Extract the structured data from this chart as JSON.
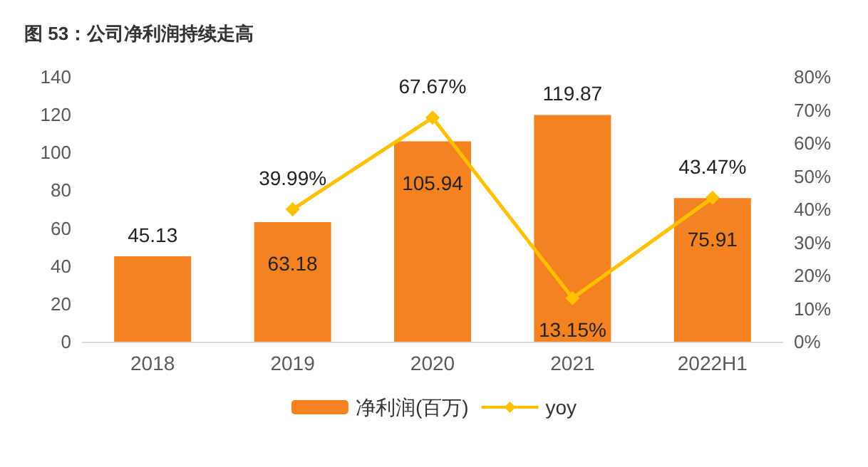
{
  "chart_data": {
    "type": "bar",
    "title": "图 53：公司净利润持续走高",
    "categories": [
      "2018",
      "2019",
      "2020",
      "2021",
      "2022H1"
    ],
    "series": [
      {
        "name": "净利润(百万)",
        "color": "#f58220",
        "values": [
          45.13,
          63.18,
          105.94,
          119.87,
          75.91
        ]
      },
      {
        "name": "yoy",
        "type": "line",
        "axis": "y2",
        "color": "#ffc000",
        "marker": "diamond",
        "values": [
          null,
          39.99,
          67.67,
          13.15,
          43.47
        ],
        "value_labels": [
          null,
          "39.99%",
          "67.67%",
          "13.15%",
          "43.47%"
        ]
      }
    ],
    "data_labels": true,
    "ylim": [
      0,
      140
    ],
    "yticks": [
      0,
      20,
      40,
      60,
      80,
      100,
      120,
      140
    ],
    "y2lim": [
      0,
      80
    ],
    "y2ticks": [
      {
        "value": 0,
        "label": "0%"
      },
      {
        "value": 10,
        "label": "10%"
      },
      {
        "value": 20,
        "label": "20%"
      },
      {
        "value": 30,
        "label": "30%"
      },
      {
        "value": 40,
        "label": "40%"
      },
      {
        "value": 50,
        "label": "50%"
      },
      {
        "value": 60,
        "label": "60%"
      },
      {
        "value": 70,
        "label": "70%"
      },
      {
        "value": 80,
        "label": "80%"
      }
    ],
    "grid": false,
    "legend": "bottom"
  }
}
